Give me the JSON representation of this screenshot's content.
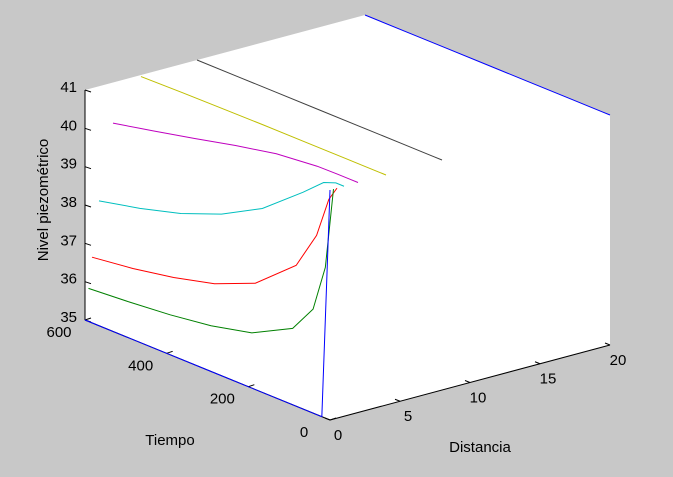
{
  "chart_data": {
    "type": "line3d",
    "xlabel": "Distancia",
    "ylabel": "Tiempo",
    "zlabel": "Nivel piezométrico",
    "xlim": [
      0,
      20
    ],
    "ylim": [
      0,
      600
    ],
    "zlim": [
      35,
      41
    ],
    "xticks": [
      0,
      5,
      10,
      15,
      20
    ],
    "yticks": [
      0,
      200,
      400,
      600
    ],
    "zticks": [
      35,
      36,
      37,
      38,
      39,
      40,
      41
    ],
    "t": [
      0,
      20,
      50,
      100,
      200,
      300,
      400,
      500,
      600
    ],
    "series": [
      {
        "distance": 0,
        "color": "#0000ff",
        "values": [
          41,
          35,
          35,
          35,
          35,
          35,
          35,
          35,
          35
        ]
      },
      {
        "distance": 0.25,
        "color": "#008000",
        "values": [
          41,
          38.87,
          37.65,
          36.93,
          36.38,
          36.13,
          35.98,
          35.88,
          35.8
        ]
      },
      {
        "distance": 0.5,
        "color": "#ff0000",
        "values": [
          41,
          40.62,
          39.55,
          38.55,
          37.65,
          37.2,
          36.93,
          36.73,
          36.59
        ]
      },
      {
        "distance": 1,
        "color": "#00bfbf",
        "values": [
          41,
          41,
          40.88,
          40.41,
          39.55,
          38.97,
          38.55,
          38.25,
          38.01
        ]
      },
      {
        "distance": 2,
        "color": "#bf00bf",
        "values": [
          41,
          41,
          41,
          40.99,
          40.88,
          40.66,
          40.41,
          40.17,
          39.94
        ]
      },
      {
        "distance": 4,
        "color": "#bfbf00",
        "values": [
          41,
          41,
          41,
          41,
          41,
          41,
          40.99,
          40.98,
          40.96
        ]
      },
      {
        "distance": 8,
        "color": "#404040",
        "values": [
          41,
          41,
          41,
          41,
          41,
          41,
          41,
          41,
          41
        ]
      },
      {
        "distance": 20,
        "color": "#0000ff",
        "values": [
          41,
          41,
          41,
          41,
          41,
          41,
          41,
          41,
          41
        ]
      }
    ]
  }
}
